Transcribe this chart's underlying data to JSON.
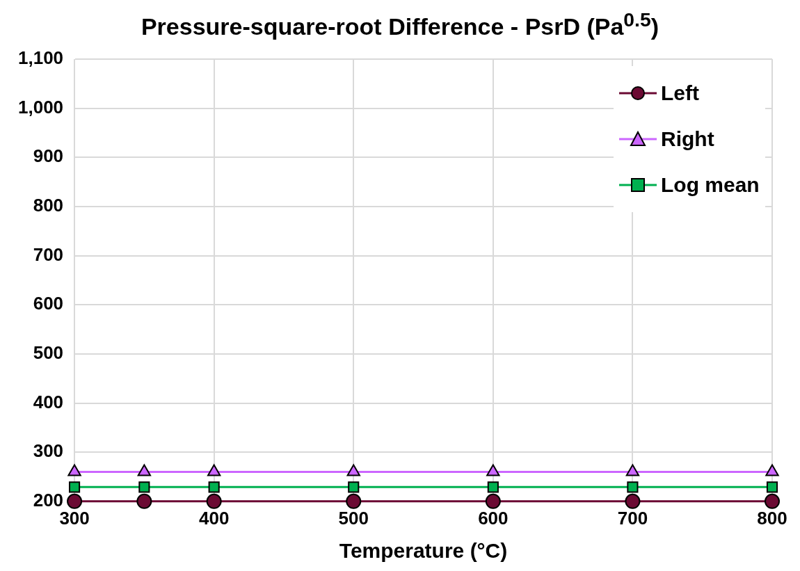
{
  "chart_data": {
    "type": "line",
    "title": "Pressure-square-root Difference - PsrD (Pa$^{0.5}$)",
    "xlabel": "Temperature (°C)",
    "x": [
      300,
      350,
      400,
      500,
      600,
      700,
      800
    ],
    "series": [
      {
        "name": "Left",
        "color": "#6b0a33",
        "marker": "circle",
        "values": [
          200,
          200,
          200,
          200,
          200,
          200,
          200
        ]
      },
      {
        "name": "Right",
        "color": "#cc66ff",
        "marker": "triangle",
        "values": [
          260,
          260,
          260,
          260,
          260,
          260,
          260
        ]
      },
      {
        "name": "Log mean",
        "color": "#00b050",
        "marker": "square",
        "values": [
          229,
          229,
          229,
          229,
          229,
          229,
          229
        ]
      }
    ],
    "xlim": [
      300,
      800
    ],
    "xticks": [
      300,
      400,
      500,
      600,
      700,
      800
    ],
    "ylim": [
      200,
      1100
    ],
    "yticks": [
      200,
      300,
      400,
      500,
      600,
      700,
      800,
      900,
      {
        "value": 1000,
        "label": "1,000"
      },
      {
        "value": 1100,
        "label": "1,100"
      }
    ],
    "grid": true,
    "legend": "top right"
  }
}
